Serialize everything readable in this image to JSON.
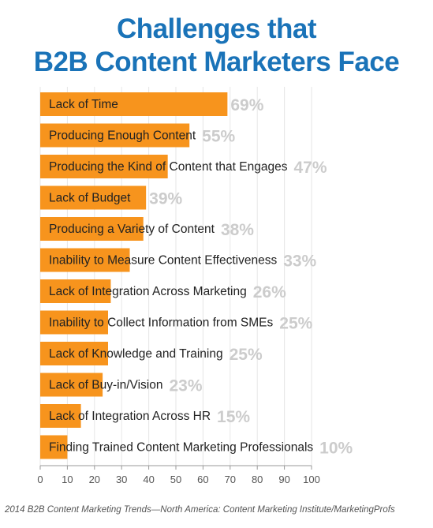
{
  "chart_data": {
    "type": "bar",
    "orientation": "horizontal",
    "title_lines": [
      "Challenges that",
      "B2B Content Marketers Face"
    ],
    "categories": [
      "Lack of Time",
      "Producing Enough Content",
      "Producing the Kind of Content that Engages",
      "Lack of Budget",
      "Producing a Variety of Content",
      "Inability to Measure Content Effectiveness",
      "Lack of Integration Across Marketing",
      "Inability to Collect Information from SMEs",
      "Lack of Knowledge and Training",
      "Lack of Buy-in/Vision",
      "Lack of Integration Across HR",
      "Finding Trained Content Marketing Professionals"
    ],
    "values": [
      69,
      55,
      47,
      39,
      38,
      33,
      26,
      25,
      25,
      23,
      15,
      10
    ],
    "value_labels": [
      "69%",
      "55%",
      "47%",
      "39%",
      "38%",
      "33%",
      "26%",
      "25%",
      "25%",
      "23%",
      "15%",
      "10%"
    ],
    "xlim": [
      0,
      100
    ],
    "xticks": [
      "0",
      "10",
      "20",
      "30",
      "40",
      "50",
      "60",
      "70",
      "80",
      "90",
      "100"
    ],
    "bar_color": "#f7941d",
    "value_label_color": "#cccccc",
    "title_color": "#1a73b8",
    "source": "2014 B2B Content Marketing Trends—North America: Content Marketing Institute/MarketingProfs"
  }
}
